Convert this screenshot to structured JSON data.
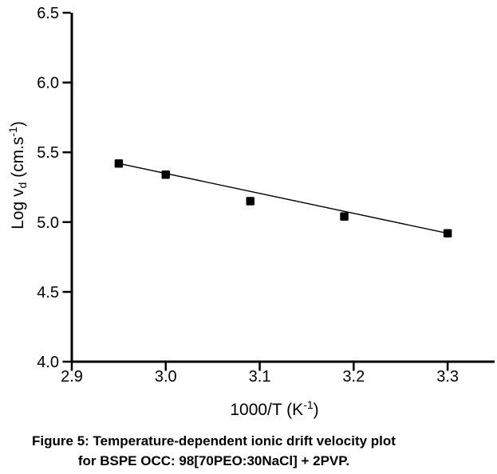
{
  "figure": {
    "caption_line1": "Figure 5: Temperature-dependent ionic drift velocity plot",
    "caption_line2": "for BSPE OCC: 98[70PEO:30NaCl] + 2PVP."
  },
  "chart_data": {
    "type": "scatter",
    "x": [
      2.95,
      3.0,
      3.09,
      3.19,
      3.3
    ],
    "y": [
      5.42,
      5.34,
      5.15,
      5.04,
      4.92
    ],
    "fit_line": {
      "x": [
        2.95,
        3.3
      ],
      "y": [
        5.42,
        4.92
      ]
    },
    "xlabel_parts": [
      {
        "t": "1000/T (K"
      },
      {
        "t": "-1",
        "s": "sup"
      },
      {
        "t": ")"
      }
    ],
    "ylabel_parts": [
      {
        "t": "Log v"
      },
      {
        "t": "d",
        "s": "sub"
      },
      {
        "t": " (cm.s"
      },
      {
        "t": "-1",
        "s": "sup"
      },
      {
        "t": ")"
      }
    ],
    "xlabel_text": "1000/T (K^-1)",
    "ylabel_text": "Log v_d (cm.s^-1)",
    "xlim": [
      2.9,
      3.35
    ],
    "ylim": [
      4.0,
      6.5
    ],
    "xticks": [
      "2.9",
      "3.0",
      "3.1",
      "3.2",
      "3.3"
    ],
    "yticks": [
      "4.0",
      "4.5",
      "5.0",
      "5.5",
      "6.0",
      "6.5"
    ],
    "marker": "square",
    "grid": false,
    "legend": null,
    "colors": {
      "marker": "#000000",
      "line": "#000000",
      "axis": "#000000",
      "text": "#000000",
      "background": "#ffffff"
    }
  }
}
